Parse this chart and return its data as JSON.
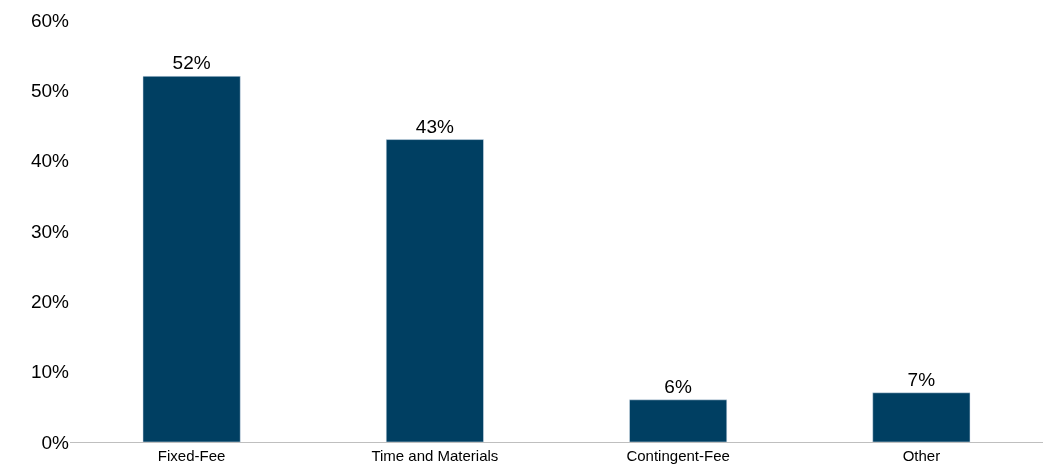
{
  "chart_data": {
    "type": "bar",
    "categories": [
      "Fixed-Fee",
      "Time and Materials",
      "Contingent-Fee",
      "Other"
    ],
    "values": [
      52,
      43,
      6,
      7
    ],
    "value_labels": [
      "52%",
      "43%",
      "6%",
      "7%"
    ],
    "color": "#003f62",
    "ylim": [
      0,
      60
    ],
    "yticks": [
      {
        "value": 0,
        "label": "0%"
      },
      {
        "value": 10,
        "label": "10%"
      },
      {
        "value": 20,
        "label": "20%"
      },
      {
        "value": 30,
        "label": "30%"
      },
      {
        "value": 40,
        "label": "40%"
      },
      {
        "value": 50,
        "label": "50%"
      },
      {
        "value": 60,
        "label": "60%"
      }
    ]
  }
}
